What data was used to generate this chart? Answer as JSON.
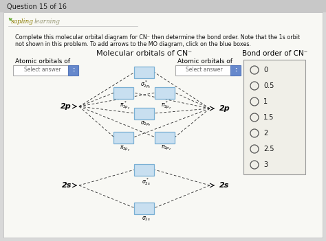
{
  "bg_color": "#d8d8d8",
  "panel_color": "#f8f8f4",
  "title": "Molecular orbitals of CN⁻",
  "bond_order_title": "Bond order of CN⁻",
  "left_label": "Atomic orbitals of",
  "right_label": "Atomic orbitals of",
  "header": "Question 15 of 16",
  "instructions_line1": "Complete this molecular orbital diagram for CN⁻ then determine the bond order. Note that the 1s orbit",
  "instructions_line2": "not shown in this problem. To add arrows to the MO diagram, click on the blue boxes.",
  "ao_left_2p": "2p",
  "ao_right_2p": "2p",
  "ao_left_2s": "2s",
  "ao_right_2s": "2s",
  "box_color": "#c8dff0",
  "box_edge_color": "#7ab0d4",
  "bond_order_values": [
    "0",
    "0.5",
    "1",
    "1.5",
    "2",
    "2.5",
    "3"
  ],
  "select_answer_text": "Select answer"
}
